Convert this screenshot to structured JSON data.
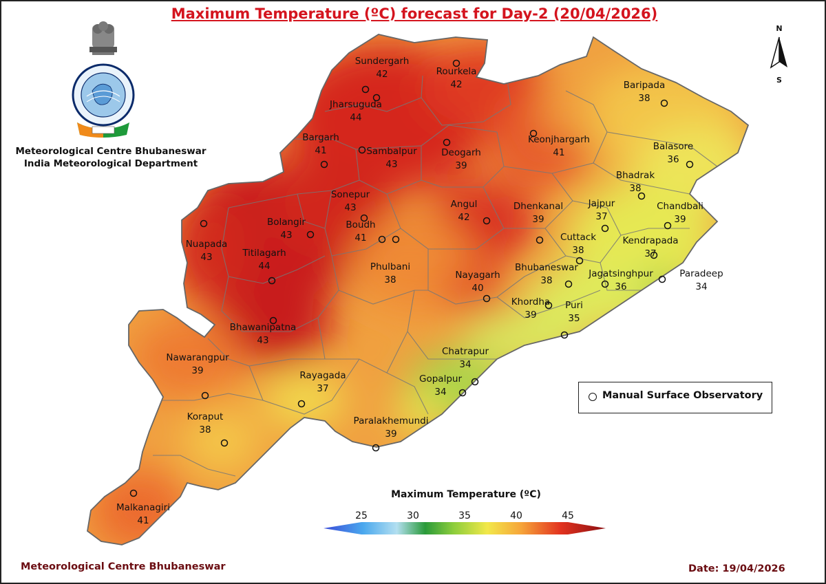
{
  "title": "Maximum Temperature (ºC) forecast for Day-2 (20/04/2026)",
  "organization": {
    "line1": "Meteorological Centre Bhubaneswar",
    "line2": "India Meteorological Department"
  },
  "compass": {
    "north": "N",
    "south": "S"
  },
  "stations": [
    {
      "name": "Sundergarh",
      "value": "42"
    },
    {
      "name": "Rourkela",
      "value": "42"
    },
    {
      "name": "Jharsuguda",
      "value": "44"
    },
    {
      "name": "Bargarh",
      "value": "41"
    },
    {
      "name": "Sambalpur",
      "value": "43"
    },
    {
      "name": "Deogarh",
      "value": "39"
    },
    {
      "name": "Keonjhargarh",
      "value": "41"
    },
    {
      "name": "Baripada",
      "value": "38"
    },
    {
      "name": "Balasore",
      "value": "36"
    },
    {
      "name": "Bhadrak",
      "value": "38"
    },
    {
      "name": "Chandbali",
      "value": "39"
    },
    {
      "name": "Jajpur",
      "value": "37"
    },
    {
      "name": "Kendrapada",
      "value": "37"
    },
    {
      "name": "Paradeep",
      "value": "34"
    },
    {
      "name": "Jagatsinghpur",
      "value": "36"
    },
    {
      "name": "Cuttack",
      "value": "38"
    },
    {
      "name": "Bhubaneswar",
      "value": "38"
    },
    {
      "name": "Dhenkanal",
      "value": "39"
    },
    {
      "name": "Angul",
      "value": "42"
    },
    {
      "name": "Sonepur",
      "value": "43"
    },
    {
      "name": "Boudh",
      "value": "41"
    },
    {
      "name": "Bolangir",
      "value": "43"
    },
    {
      "name": "Nuapada",
      "value": "43"
    },
    {
      "name": "Titilagarh",
      "value": "44"
    },
    {
      "name": "Phulbani",
      "value": "38"
    },
    {
      "name": "Nayagarh",
      "value": "40"
    },
    {
      "name": "Khordha",
      "value": "39"
    },
    {
      "name": "Puri",
      "value": "35"
    },
    {
      "name": "Bhawanipatna",
      "value": "43"
    },
    {
      "name": "Nawarangpur",
      "value": "39"
    },
    {
      "name": "Rayagada",
      "value": "37"
    },
    {
      "name": "Chatrapur",
      "value": "34"
    },
    {
      "name": "Gopalpur",
      "value": "34"
    },
    {
      "name": "Koraput",
      "value": "38"
    },
    {
      "name": "Paralakhemundi",
      "value": "39"
    },
    {
      "name": "Malkanagiri",
      "value": "41"
    }
  ],
  "legend": {
    "marker_label": "Manual Surface Observatory"
  },
  "colorbar": {
    "title": "Maximum Temperature (ºC)",
    "ticks": [
      "25",
      "30",
      "35",
      "40",
      "45"
    ],
    "colors": [
      "#3a4bd8",
      "#4aa8ee",
      "#b3dff0",
      "#2a9a3a",
      "#8ccd3c",
      "#f2e84a",
      "#f6a53a",
      "#e2331f",
      "#8b0f12"
    ]
  },
  "footer": {
    "left": "Meteorological Centre Bhubaneswar",
    "date": "Date: 19/04/2026"
  }
}
